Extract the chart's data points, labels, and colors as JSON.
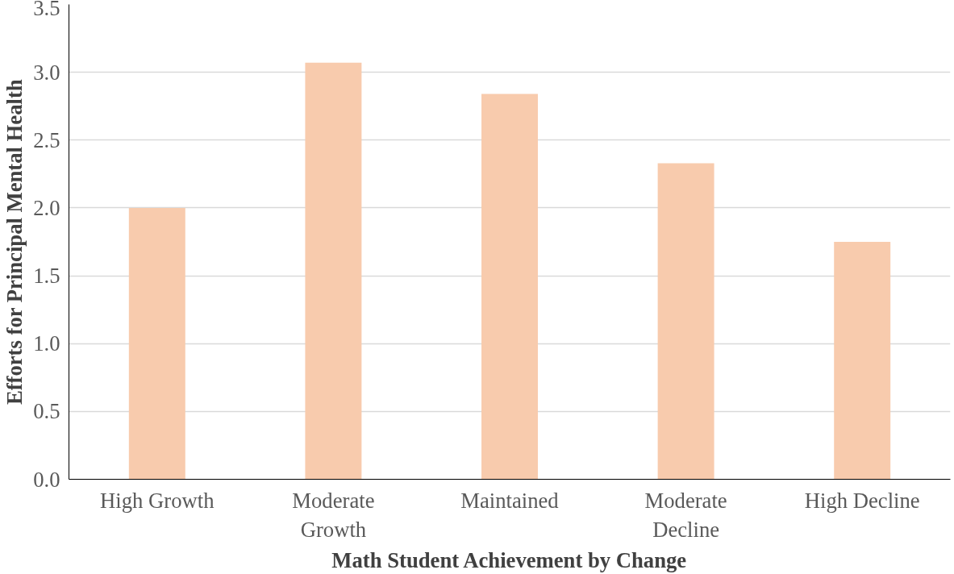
{
  "chart_data": {
    "type": "bar",
    "xlabel": "Math Student Achievement by Change",
    "ylabel": "Efforts for Principal Mental Health",
    "categories": [
      "High Growth",
      "Moderate\nGrowth",
      "Maintained",
      "Moderate\nDecline",
      "High Decline"
    ],
    "values": [
      2.0,
      3.07,
      2.84,
      2.33,
      1.75
    ],
    "color": "#f8cbad",
    "ylim": [
      0,
      3.5
    ],
    "yticks": [
      {
        "value": 0,
        "label": "0.0"
      },
      {
        "value": 0.5,
        "label": "0.5"
      },
      {
        "value": 1,
        "label": "1.0"
      },
      {
        "value": 1.5,
        "label": "1.5"
      },
      {
        "value": 2,
        "label": "2.0"
      },
      {
        "value": 2.5,
        "label": "2.5"
      },
      {
        "value": 3,
        "label": "3.0"
      },
      {
        "value": 3.5,
        "label": "3.5"
      }
    ],
    "grid": "y"
  }
}
